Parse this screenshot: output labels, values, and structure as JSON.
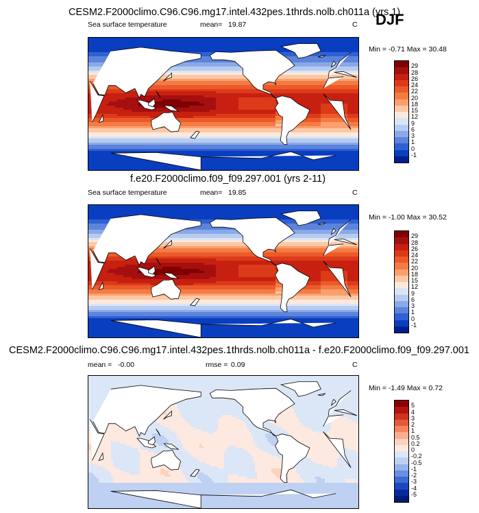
{
  "season": "DJF",
  "panels": [
    {
      "title": "CESM2.F2000climo.C96.C96.mg17.intel.432pes.1thrds.nolb.ch011a (yrs 1)",
      "left_label": "Sea surface temperature",
      "mean_label": "mean=",
      "mean_value": "19.87",
      "extra_label": "",
      "extra_value": "",
      "units": "C",
      "minmax": "Min =  -0.71 Max =  30.48",
      "colorbar_labels": [
        "29",
        "28",
        "26",
        "24",
        "22",
        "20",
        "18",
        "15",
        "12",
        "9",
        "6",
        "3",
        "1",
        "0",
        "-1"
      ],
      "colorbar_colors": [
        "#7f0000",
        "#a50f0f",
        "#c72010",
        "#dc3b1a",
        "#ec5a2a",
        "#f57b45",
        "#fba06d",
        "#fdc8a6",
        "#fde9dc",
        "#d8e5f6",
        "#b6cbef",
        "#8aa9e8",
        "#5c84dc",
        "#3060d2",
        "#0a3ec0",
        "#001f8c"
      ]
    },
    {
      "title": "f.e20.F2000climo.f09_f09.297.001 (yrs 2-11)",
      "left_label": "Sea surface temperature",
      "mean_label": "mean=",
      "mean_value": "19.85",
      "extra_label": "",
      "extra_value": "",
      "units": "C",
      "minmax": "Min =  -1.00 Max =  30.52",
      "colorbar_labels": [
        "29",
        "28",
        "26",
        "24",
        "22",
        "20",
        "18",
        "15",
        "12",
        "9",
        "6",
        "3",
        "1",
        "0",
        "-1"
      ],
      "colorbar_colors": [
        "#7f0000",
        "#a50f0f",
        "#c72010",
        "#dc3b1a",
        "#ec5a2a",
        "#f57b45",
        "#fba06d",
        "#fdc8a6",
        "#fde9dc",
        "#d8e5f6",
        "#b6cbef",
        "#8aa9e8",
        "#5c84dc",
        "#3060d2",
        "#0a3ec0",
        "#001f8c"
      ]
    },
    {
      "title": "CESM2.F2000climo.C96.C96.mg17.intel.432pes.1thrds.nolb.ch011a - f.e20.F2000climo.f09_f09.297.001",
      "left_label": "",
      "mean_label": "mean =",
      "mean_value": "-0.00",
      "extra_label": "rmse =",
      "extra_value": "0.09",
      "units": "C",
      "minmax": "Min =  -1.49 Max =   0.72",
      "colorbar_labels": [
        "5",
        "4",
        "3",
        "2",
        "1",
        "0.5",
        "0.2",
        "0",
        "-0.2",
        "-0.5",
        "-1",
        "-2",
        "-3",
        "-4",
        "-5"
      ],
      "colorbar_colors": [
        "#8b0000",
        "#b2150f",
        "#d03420",
        "#e65a38",
        "#f48460",
        "#fbae90",
        "#fdd2bd",
        "#fde9df",
        "#dbe6f7",
        "#bfd1f2",
        "#95b3ea",
        "#6a8fe0",
        "#3f6bd4",
        "#1a47c2",
        "#0a2a9c",
        "#001a78"
      ]
    }
  ],
  "chart_data": [
    {
      "type": "heatmap",
      "title": "CESM2.F2000climo.C96.C96.mg17.intel.432pes.1thrds.nolb.ch011a (yrs 1)",
      "variable": "Sea surface temperature",
      "units": "C",
      "season": "DJF",
      "mean": 19.87,
      "min": -0.71,
      "max": 30.48,
      "levels": [
        -1,
        0,
        1,
        3,
        6,
        9,
        12,
        15,
        18,
        20,
        22,
        24,
        26,
        28,
        29
      ],
      "lat_profile": [
        [
          -90,
          -1
        ],
        [
          -75,
          -1
        ],
        [
          -65,
          0
        ],
        [
          -60,
          1
        ],
        [
          -55,
          4
        ],
        [
          -50,
          7
        ],
        [
          -45,
          11
        ],
        [
          -40,
          14
        ],
        [
          -35,
          17
        ],
        [
          -30,
          20
        ],
        [
          -25,
          22
        ],
        [
          -20,
          24
        ],
        [
          -10,
          27
        ],
        [
          0,
          28
        ],
        [
          10,
          27
        ],
        [
          20,
          24
        ],
        [
          25,
          22
        ],
        [
          30,
          20
        ],
        [
          35,
          17
        ],
        [
          40,
          14
        ],
        [
          45,
          10
        ],
        [
          50,
          6
        ],
        [
          55,
          4
        ],
        [
          60,
          2
        ],
        [
          70,
          0
        ],
        [
          90,
          -1
        ]
      ]
    },
    {
      "type": "heatmap",
      "title": "f.e20.F2000climo.f09_f09.297.001 (yrs 2-11)",
      "variable": "Sea surface temperature",
      "units": "C",
      "season": "DJF",
      "mean": 19.85,
      "min": -1.0,
      "max": 30.52,
      "levels": [
        -1,
        0,
        1,
        3,
        6,
        9,
        12,
        15,
        18,
        20,
        22,
        24,
        26,
        28,
        29
      ],
      "lat_profile": [
        [
          -90,
          -1
        ],
        [
          -75,
          -1
        ],
        [
          -65,
          0
        ],
        [
          -60,
          1
        ],
        [
          -55,
          4
        ],
        [
          -50,
          7
        ],
        [
          -45,
          11
        ],
        [
          -40,
          14
        ],
        [
          -35,
          17
        ],
        [
          -30,
          20
        ],
        [
          -25,
          22
        ],
        [
          -20,
          24
        ],
        [
          -10,
          27
        ],
        [
          0,
          28
        ],
        [
          10,
          27
        ],
        [
          20,
          24
        ],
        [
          25,
          22
        ],
        [
          30,
          20
        ],
        [
          35,
          17
        ],
        [
          40,
          14
        ],
        [
          45,
          10
        ],
        [
          50,
          6
        ],
        [
          55,
          4
        ],
        [
          60,
          2
        ],
        [
          70,
          0
        ],
        [
          90,
          -1
        ]
      ]
    },
    {
      "type": "heatmap",
      "title": "CESM2.F2000climo.C96.C96.mg17.intel.432pes.1thrds.nolb.ch011a - f.e20.F2000climo.f09_f09.297.001",
      "units": "C",
      "season": "DJF",
      "mean": -0.0,
      "rmse": 0.09,
      "min": -1.49,
      "max": 0.72,
      "levels": [
        -5,
        -4,
        -3,
        -2,
        -1,
        -0.5,
        -0.2,
        0,
        0.2,
        0.5,
        1,
        2,
        3,
        4,
        5
      ]
    }
  ]
}
